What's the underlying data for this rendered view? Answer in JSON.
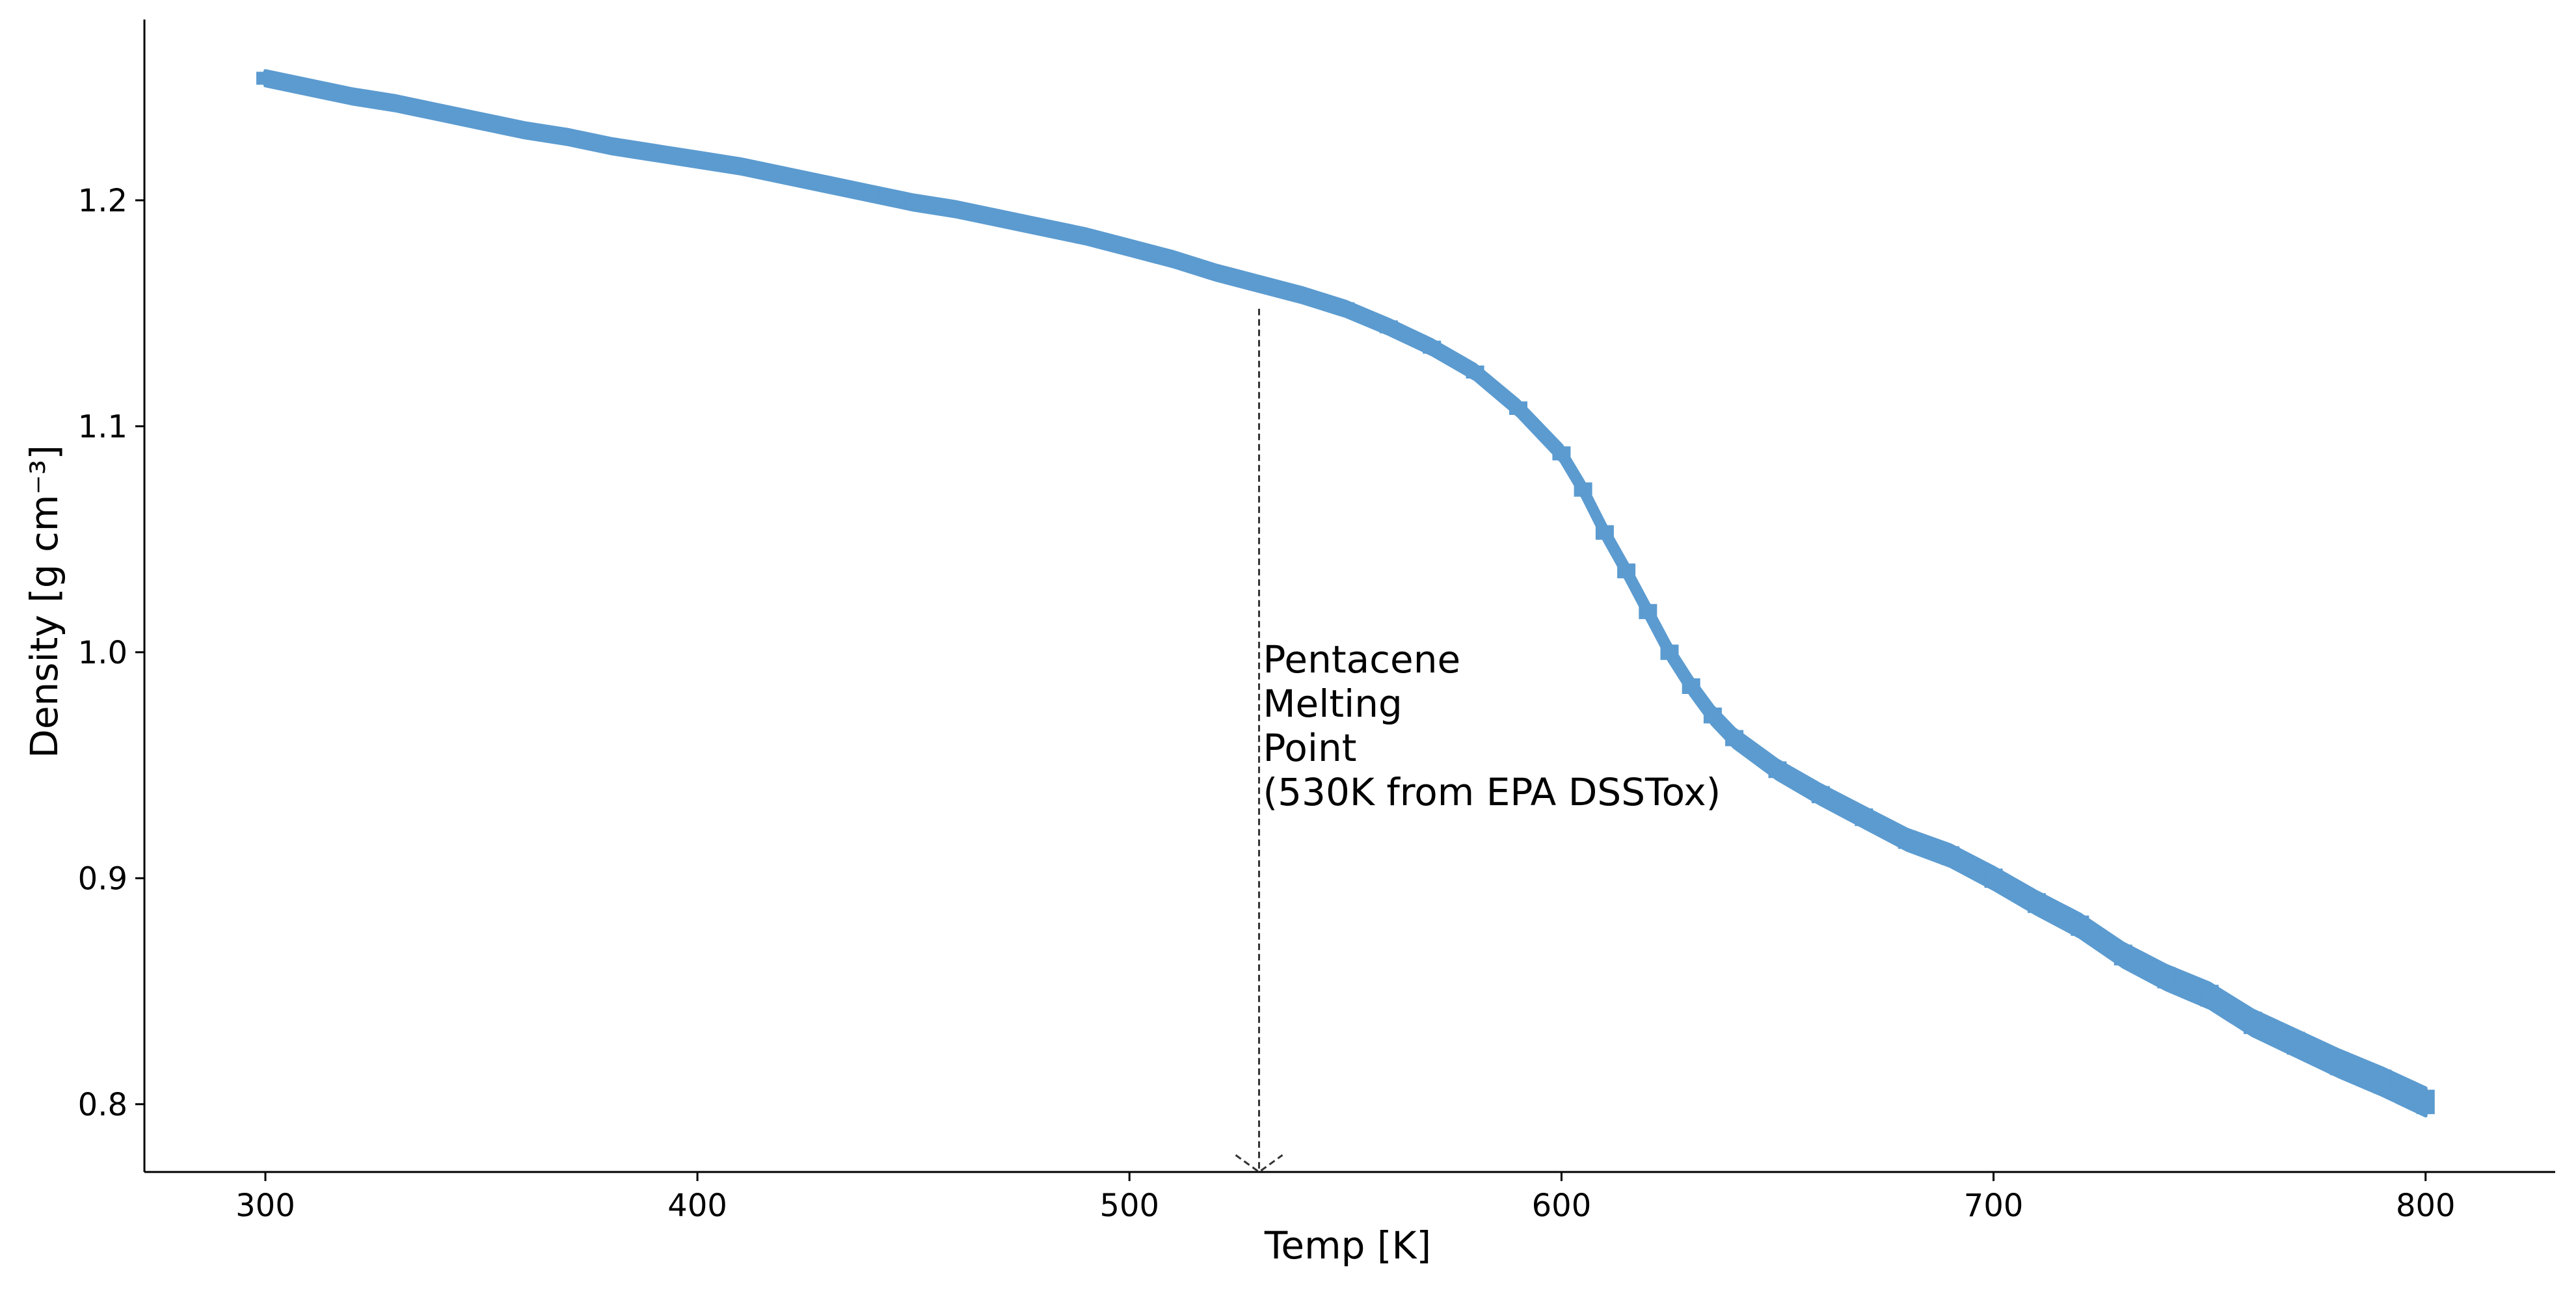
{
  "chart_data": {
    "type": "scatter",
    "title": "",
    "xlabel": "Temp [K]",
    "ylabel": "Density [g cm⁻³]",
    "xlim": [
      272,
      830
    ],
    "ylim": [
      0.77,
      1.28
    ],
    "xticks": [
      300,
      400,
      500,
      600,
      700,
      800
    ],
    "yticks": [
      0.8,
      0.9,
      1.0,
      1.1,
      1.2
    ],
    "xtick_labels": [
      "300",
      "400",
      "500",
      "600",
      "700",
      "800"
    ],
    "ytick_labels": [
      "0.8",
      "0.9",
      "1.0",
      "1.1",
      "1.2"
    ],
    "grid": false,
    "series_color": "#5b9bd0",
    "series": [
      {
        "x": [
          300,
          310,
          320,
          330,
          340,
          350,
          360,
          370,
          380,
          390,
          400,
          410,
          420,
          430,
          440,
          450,
          460,
          470,
          480,
          490,
          500,
          510,
          520,
          530,
          540,
          550,
          560,
          570,
          580,
          590,
          600,
          605,
          610,
          615,
          620,
          625,
          630,
          635,
          640,
          650,
          660,
          670,
          680,
          690,
          700,
          710,
          720,
          730,
          740,
          750,
          760,
          770,
          780,
          790,
          800
        ],
        "y": [
          1.254,
          1.25,
          1.246,
          1.243,
          1.239,
          1.235,
          1.231,
          1.228,
          1.224,
          1.221,
          1.218,
          1.215,
          1.211,
          1.207,
          1.203,
          1.199,
          1.196,
          1.192,
          1.188,
          1.184,
          1.179,
          1.174,
          1.168,
          1.163,
          1.158,
          1.152,
          1.144,
          1.135,
          1.124,
          1.108,
          1.088,
          1.072,
          1.053,
          1.036,
          1.018,
          1.0,
          0.985,
          0.972,
          0.962,
          0.948,
          0.937,
          0.927,
          0.917,
          0.91,
          0.9,
          0.889,
          0.879,
          0.866,
          0.856,
          0.848,
          0.836,
          0.827,
          0.818,
          0.81,
          0.801
        ]
      }
    ],
    "annotation": {
      "lines": [
        "Pentacene",
        "Melting",
        "Point",
        "(530K from EPA DSSTox)"
      ],
      "x": 530,
      "y_top": 1.152,
      "y_bottom": 0.77
    }
  }
}
